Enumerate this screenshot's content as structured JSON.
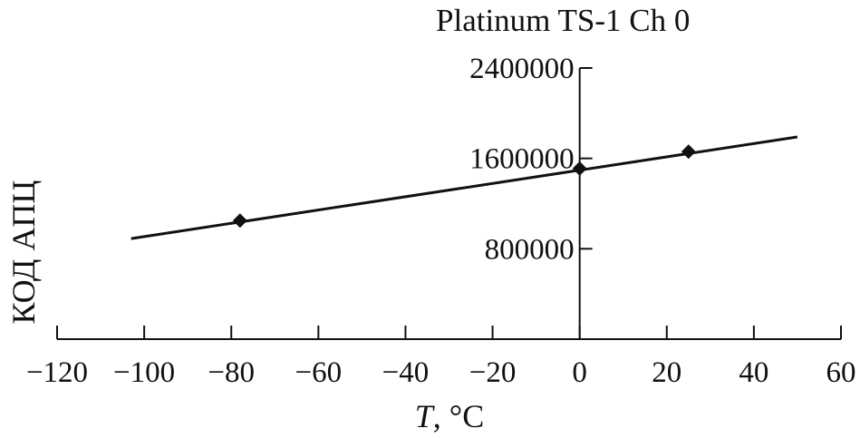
{
  "chart_data": {
    "type": "line",
    "title": "Platinum TS-1 Ch 0",
    "xlabel_var": "T",
    "xlabel_unit": ", °C",
    "ylabel": "КОД АПЦ",
    "xlim": [
      -120,
      60
    ],
    "ylim": [
      0,
      2400000
    ],
    "xticks": [
      -120,
      -100,
      -80,
      -60,
      -40,
      -20,
      0,
      20,
      40,
      60
    ],
    "xtick_labels": [
      "−120",
      "−100",
      "−80",
      "−60",
      "−40",
      "−20",
      "0",
      "20",
      "40",
      "60"
    ],
    "yticks": [
      800000,
      1600000,
      2400000
    ],
    "ytick_labels": [
      "800000",
      "1600000",
      "2400000"
    ],
    "grid": false,
    "series": [
      {
        "kind": "fit-line",
        "x": [
          -103,
          50
        ],
        "y": [
          890000,
          1790000
        ]
      },
      {
        "kind": "points",
        "marker": "diamond",
        "x": [
          -78,
          0,
          25
        ],
        "y": [
          1050000,
          1510000,
          1660000
        ]
      }
    ],
    "colors": {
      "line": "#111111",
      "marker": "#111111"
    }
  }
}
